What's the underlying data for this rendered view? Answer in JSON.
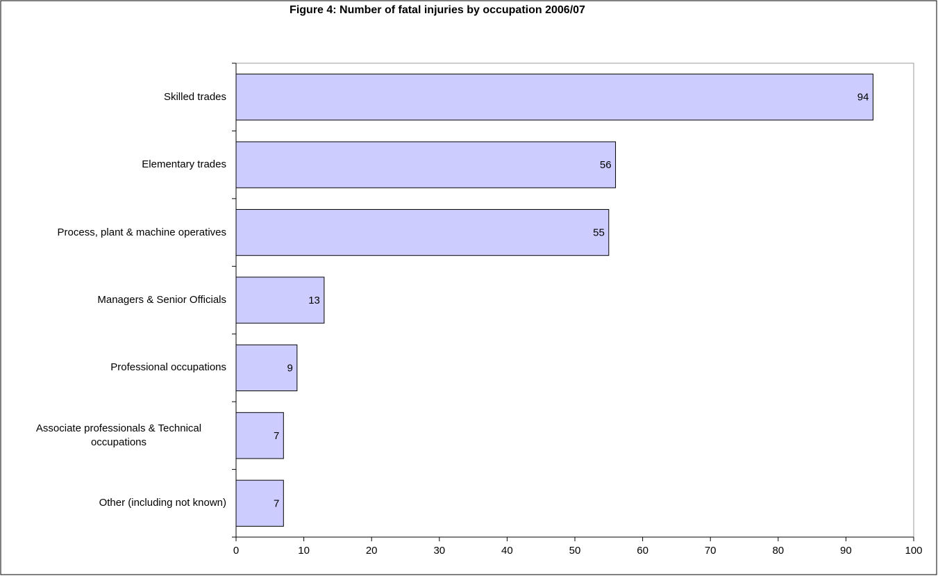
{
  "chart_data": {
    "type": "bar",
    "orientation": "horizontal",
    "title": "Figure 4: Number of fatal injuries by occupation 2006/07",
    "categories": [
      "Skilled trades",
      "Elementary trades",
      "Process, plant & machine operatives",
      "Managers & Senior Officials",
      "Professional occupations",
      "Associate professionals & Technical occupations",
      "Other (including not known)"
    ],
    "values": [
      94,
      56,
      55,
      13,
      9,
      7,
      7
    ],
    "color": "#ccccff",
    "xlim": [
      0,
      100
    ],
    "xticks": [
      0,
      10,
      20,
      30,
      40,
      50,
      60,
      70,
      80,
      90,
      100
    ],
    "grid": false
  }
}
